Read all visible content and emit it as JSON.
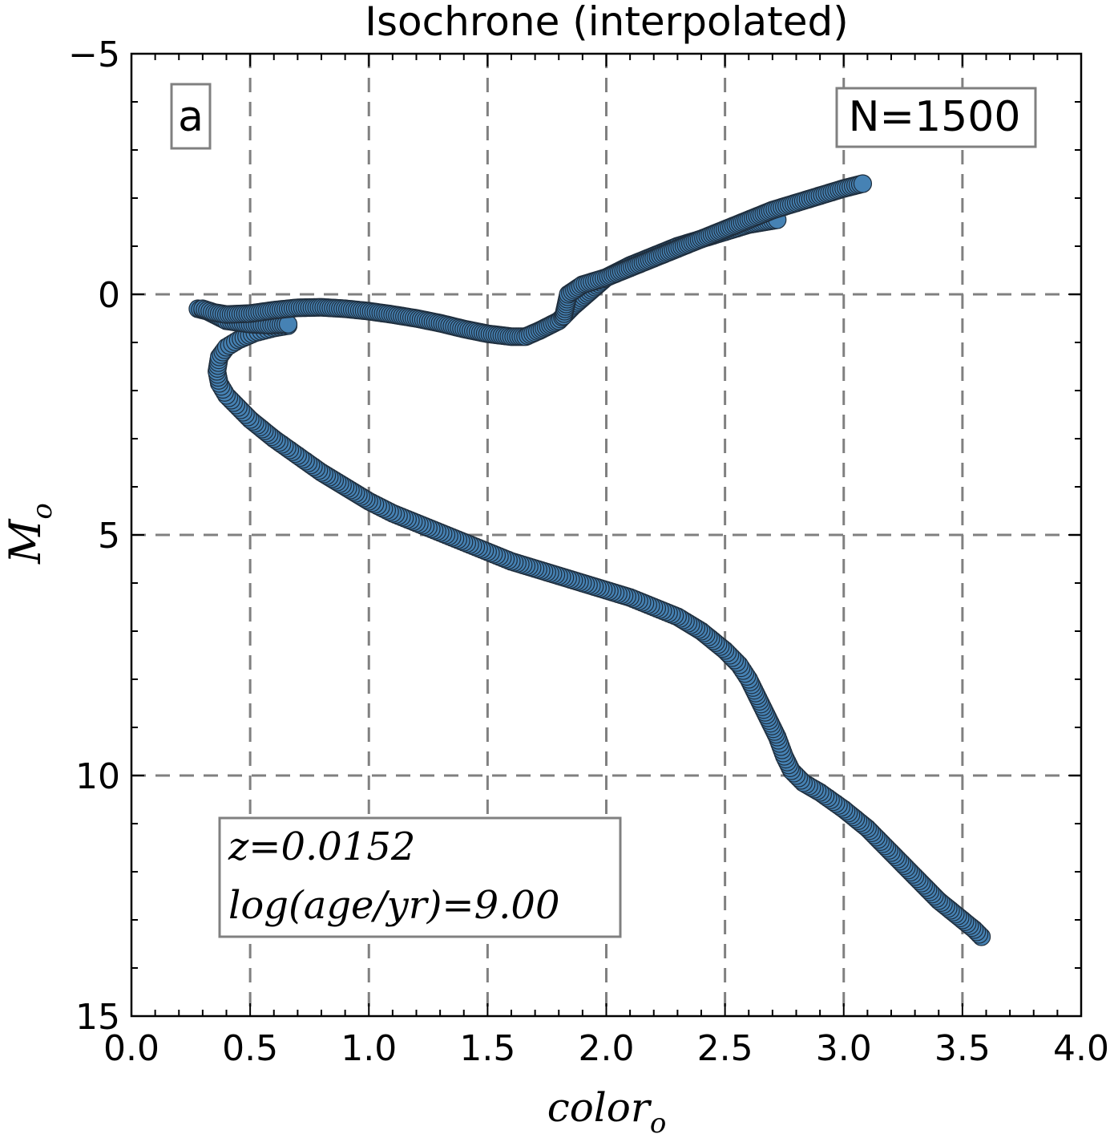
{
  "chart_data": {
    "type": "scatter",
    "title": "Isochrone (interpolated)",
    "xlabel": "color",
    "xlabel_sub": "o",
    "ylabel": "M",
    "ylabel_sub": "o",
    "xlim": [
      0.0,
      4.0
    ],
    "ylim": [
      15,
      -5
    ],
    "y_inverted": true,
    "grid": true,
    "x_ticks": [
      0.0,
      0.5,
      1.0,
      1.5,
      2.0,
      2.5,
      3.0,
      3.5,
      4.0
    ],
    "x_tick_labels": [
      "0.0",
      "0.5",
      "1.0",
      "1.5",
      "2.0",
      "2.5",
      "3.0",
      "3.5",
      "4.0"
    ],
    "y_ticks": [
      -5,
      0,
      5,
      10,
      15
    ],
    "y_tick_labels": [
      "−5",
      "0",
      "5",
      "10",
      "15"
    ],
    "marker_color": "#4682b4",
    "marker_edge_color": "#1e2d3c",
    "panel_label": "a",
    "count_label": "N=1500",
    "annotation_lines": [
      "z=0.0152",
      "log(age/yr)=9.00"
    ],
    "main_sequence": {
      "x": [
        3.58,
        3.55,
        3.5,
        3.45,
        3.4,
        3.3,
        3.2,
        3.1,
        3.0,
        2.9,
        2.83,
        2.78,
        2.75,
        2.72,
        2.68,
        2.64,
        2.6,
        2.56,
        2.5,
        2.4,
        2.3,
        2.2,
        2.1,
        2.0,
        1.9,
        1.8,
        1.7,
        1.6,
        1.5,
        1.4,
        1.3,
        1.2,
        1.1,
        1.0,
        0.9,
        0.8,
        0.7,
        0.6,
        0.5,
        0.45,
        0.4,
        0.37,
        0.36,
        0.37,
        0.4,
        0.45,
        0.52,
        0.6,
        0.66
      ],
      "y": [
        13.35,
        13.2,
        13.0,
        12.8,
        12.6,
        12.1,
        11.6,
        11.1,
        10.7,
        10.35,
        10.15,
        9.9,
        9.6,
        9.2,
        8.8,
        8.4,
        8.0,
        7.7,
        7.4,
        7.0,
        6.7,
        6.5,
        6.3,
        6.15,
        6.0,
        5.85,
        5.7,
        5.55,
        5.35,
        5.15,
        4.95,
        4.75,
        4.55,
        4.3,
        4.0,
        3.7,
        3.35,
        3.0,
        2.6,
        2.35,
        2.1,
        1.85,
        1.6,
        1.3,
        1.1,
        0.95,
        0.8,
        0.7,
        0.65
      ]
    },
    "turnoff_and_giant_branch": {
      "x": [
        0.3,
        0.35,
        0.4,
        0.5,
        0.6,
        0.7,
        0.8,
        0.9,
        1.0,
        1.1,
        1.2,
        1.3,
        1.4,
        1.5,
        1.6,
        1.66,
        1.72,
        1.8,
        1.86,
        1.93,
        2.0,
        2.1,
        2.2,
        2.3,
        2.4,
        2.5,
        2.6,
        2.72
      ],
      "y": [
        0.3,
        0.38,
        0.42,
        0.4,
        0.33,
        0.28,
        0.27,
        0.3,
        0.35,
        0.42,
        0.5,
        0.6,
        0.72,
        0.82,
        0.88,
        0.88,
        0.75,
        0.55,
        0.25,
        -0.05,
        -0.35,
        -0.6,
        -0.8,
        -1.0,
        -1.15,
        -1.3,
        -1.45,
        -1.55
      ]
    },
    "red_clump_branch": {
      "x": [
        1.82,
        1.84,
        1.9,
        2.0,
        2.1,
        2.2,
        2.3,
        2.4,
        2.5,
        2.6,
        2.7,
        2.8,
        2.9,
        3.0,
        3.08
      ],
      "y": [
        0.45,
        0.0,
        -0.2,
        -0.35,
        -0.55,
        -0.75,
        -0.95,
        -1.15,
        -1.35,
        -1.55,
        -1.75,
        -1.9,
        -2.05,
        -2.2,
        -2.3
      ]
    },
    "subgiant_return": {
      "x": [
        0.28,
        0.32,
        0.4,
        0.5,
        0.58,
        0.66
      ],
      "y": [
        0.3,
        0.35,
        0.55,
        0.62,
        0.64,
        0.62
      ]
    }
  }
}
